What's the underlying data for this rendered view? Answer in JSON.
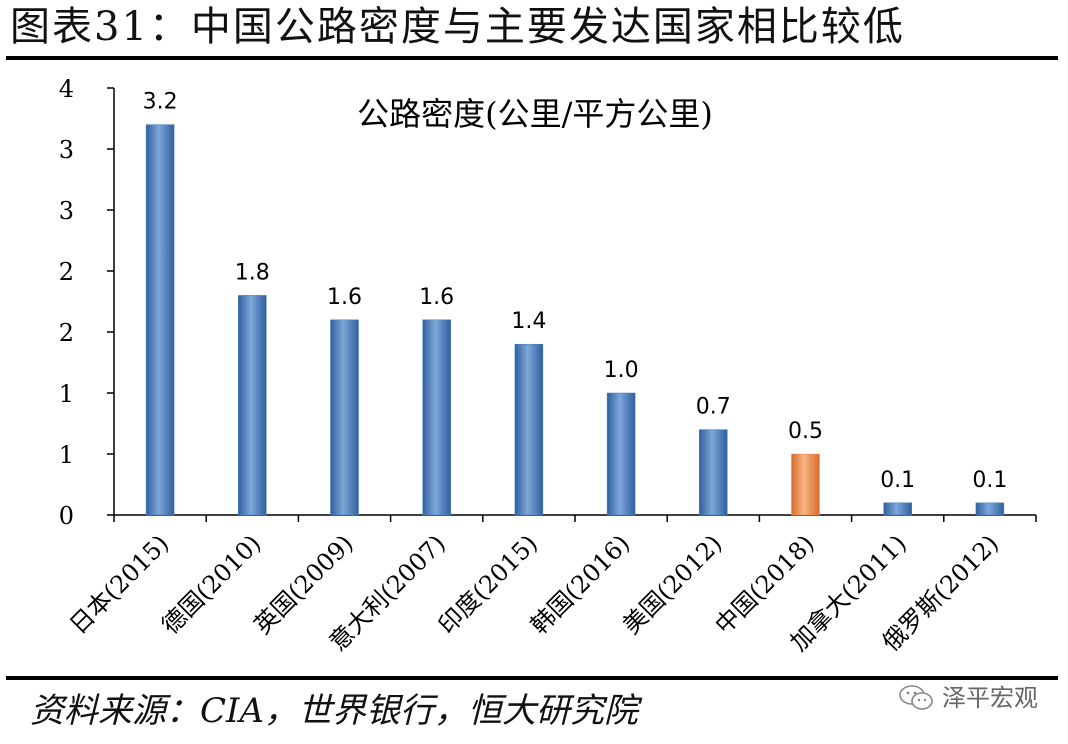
{
  "figure_title": "图表31：中国公路密度与主要发达国家相比较低",
  "source": "资料来源：CIA，世界银行，恒大研究院",
  "watermark": {
    "text": "泽平宏观",
    "icon": "wechat-chat-icon"
  },
  "colors": {
    "bar": "#4a7ebf",
    "highlight": "#ef8f4e",
    "axis": "#000000"
  },
  "chart_data": {
    "type": "bar",
    "title": "公路密度(公里/平方公里)",
    "categories": [
      "日本(2015)",
      "德国(2010)",
      "英国(2009)",
      "意大利(2007)",
      "印度(2015)",
      "韩国(2016)",
      "美国(2012)",
      "中国(2018)",
      "加拿大(2011)",
      "俄罗斯(2012)"
    ],
    "values": [
      3.2,
      1.8,
      1.6,
      1.6,
      1.4,
      1.0,
      0.7,
      0.5,
      0.1,
      0.1
    ],
    "value_labels": [
      "3.2",
      "1.8",
      "1.6",
      "1.6",
      "1.4",
      "1.0",
      "0.7",
      "0.5",
      "0.1",
      "0.1"
    ],
    "highlight_category": "中国(2018)",
    "y_tick_values": [
      0,
      0.5,
      1,
      1.5,
      2,
      2.5,
      3,
      3.5
    ],
    "y_tick_labels": [
      "0",
      "1",
      "1",
      "2",
      "2",
      "3",
      "3",
      "4"
    ],
    "ylim": [
      0,
      3.5
    ],
    "xlabel": "",
    "ylabel": "",
    "grid": false,
    "legend": false
  }
}
